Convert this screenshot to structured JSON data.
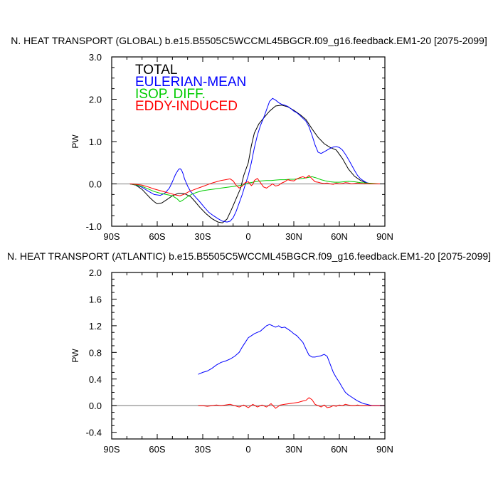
{
  "chart_data": [
    {
      "type": "line",
      "title": "N. HEAT TRANSPORT (GLOBAL) b.e15.B5505C5WCCML45BGCR.f09_g16.feedback.EM1-20 [2075-2099]",
      "xlabel": "",
      "ylabel": "PW",
      "xlim": [
        -90,
        90
      ],
      "ylim": [
        -1.0,
        3.0
      ],
      "xticks": [
        -90,
        -60,
        -30,
        0,
        30,
        60,
        90
      ],
      "xticklabels": [
        "90S",
        "60S",
        "30S",
        "0",
        "30N",
        "60N",
        "90N"
      ],
      "yticks": [
        -1.0,
        0.0,
        1.0,
        2.0,
        3.0
      ],
      "yticklabels": [
        "-1.0",
        "0.0",
        "1.0",
        "2.0",
        "3.0"
      ],
      "legend_position": "top-left",
      "zero_line_color": "#999999",
      "series": [
        {
          "name": "TOTAL",
          "color": "#000000",
          "x": [
            -78,
            -74,
            -70,
            -65,
            -62,
            -60,
            -57,
            -54,
            -50,
            -46,
            -42,
            -38,
            -35,
            -32,
            -28,
            -24,
            -20,
            -17,
            -14,
            -11,
            -8,
            -5,
            -3,
            0,
            2,
            4,
            7,
            10,
            14,
            18,
            22,
            26,
            30,
            34,
            38,
            42,
            46,
            50,
            54,
            58,
            62,
            66,
            70,
            74,
            78,
            82,
            86,
            90
          ],
          "y": [
            0,
            -0.03,
            -0.13,
            -0.32,
            -0.42,
            -0.47,
            -0.45,
            -0.38,
            -0.28,
            -0.22,
            -0.23,
            -0.3,
            -0.42,
            -0.55,
            -0.7,
            -0.82,
            -0.9,
            -0.92,
            -0.83,
            -0.6,
            -0.35,
            -0.1,
            0.2,
            0.5,
            0.9,
            1.2,
            1.42,
            1.55,
            1.72,
            1.84,
            1.86,
            1.82,
            1.74,
            1.64,
            1.52,
            1.3,
            1.1,
            0.95,
            0.86,
            0.8,
            0.6,
            0.35,
            0.18,
            0.08,
            0.02,
            0,
            0,
            0
          ]
        },
        {
          "name": "EULERIAN-MEAN",
          "color": "#0000ff",
          "x": [
            -78,
            -74,
            -70,
            -66,
            -62,
            -58,
            -55,
            -52,
            -50,
            -48,
            -46,
            -45,
            -44,
            -43,
            -42,
            -40,
            -38,
            -35,
            -32,
            -29,
            -26,
            -23,
            -20,
            -17,
            -14,
            -12,
            -10,
            -8,
            -6,
            -4,
            -2,
            0,
            2,
            4,
            6,
            8,
            10,
            12,
            14,
            16,
            18,
            20,
            22,
            24,
            26,
            28,
            30,
            32,
            34,
            36,
            38,
            40,
            42,
            44,
            46,
            48,
            50,
            52,
            54,
            56,
            58,
            60,
            62,
            64,
            66,
            68,
            70,
            72,
            74,
            76,
            78,
            80,
            82,
            84,
            86,
            88,
            90
          ],
          "y": [
            0,
            -0.02,
            -0.08,
            -0.17,
            -0.25,
            -0.27,
            -0.22,
            -0.1,
            0.05,
            0.22,
            0.34,
            0.36,
            0.33,
            0.24,
            0.12,
            -0.05,
            -0.18,
            -0.3,
            -0.42,
            -0.55,
            -0.67,
            -0.75,
            -0.82,
            -0.88,
            -0.9,
            -0.88,
            -0.8,
            -0.65,
            -0.45,
            -0.25,
            -0.02,
            0.2,
            0.5,
            0.85,
            1.15,
            1.38,
            1.55,
            1.75,
            1.95,
            2.02,
            1.98,
            1.92,
            1.88,
            1.86,
            1.83,
            1.78,
            1.72,
            1.68,
            1.62,
            1.55,
            1.48,
            1.35,
            1.15,
            0.92,
            0.75,
            0.72,
            0.76,
            0.8,
            0.84,
            0.87,
            0.88,
            0.86,
            0.8,
            0.7,
            0.58,
            0.45,
            0.32,
            0.2,
            0.12,
            0.07,
            0.03,
            0.01,
            0,
            0,
            0,
            0,
            0
          ]
        },
        {
          "name": "ISOP. DIFF.",
          "color": "#00cc00",
          "x": [
            -78,
            -74,
            -70,
            -66,
            -62,
            -58,
            -54,
            -50,
            -47,
            -45,
            -43,
            -40,
            -37,
            -34,
            -30,
            -26,
            -22,
            -18,
            -14,
            -10,
            -6,
            -3,
            0,
            3,
            6,
            9,
            12,
            15,
            18,
            21,
            24,
            27,
            30,
            33,
            36,
            39,
            42,
            45,
            48,
            51,
            54,
            57,
            60,
            63,
            66,
            70,
            74,
            78,
            82,
            86,
            90
          ],
          "y": [
            0,
            -0.02,
            -0.06,
            -0.12,
            -0.18,
            -0.22,
            -0.25,
            -0.28,
            -0.35,
            -0.42,
            -0.38,
            -0.3,
            -0.24,
            -0.2,
            -0.16,
            -0.14,
            -0.12,
            -0.1,
            -0.08,
            -0.06,
            -0.04,
            -0.02,
            0.02,
            0.04,
            0.06,
            0.07,
            0.08,
            0.08,
            0.09,
            0.1,
            0.1,
            0.11,
            0.11,
            0.12,
            0.13,
            0.15,
            0.17,
            0.14,
            0.1,
            0.07,
            0.05,
            0.04,
            0.04,
            0.05,
            0.06,
            0.05,
            0.03,
            0.02,
            0.01,
            0,
            0
          ]
        },
        {
          "name": "EDDY-INDUCED",
          "color": "#ff0000",
          "x": [
            -78,
            -74,
            -70,
            -66,
            -62,
            -58,
            -54,
            -51,
            -48,
            -45,
            -42,
            -39,
            -36,
            -33,
            -30,
            -27,
            -24,
            -21,
            -18,
            -15,
            -12,
            -10,
            -8,
            -6,
            -4,
            -2,
            0,
            1,
            2,
            3,
            4,
            6,
            8,
            10,
            12,
            14,
            16,
            18,
            20,
            22,
            24,
            26,
            28,
            30,
            32,
            34,
            36,
            38,
            40,
            42,
            44,
            46,
            48,
            50,
            52,
            54,
            56,
            58,
            60,
            62,
            64,
            66,
            68,
            70,
            72,
            74,
            76,
            78,
            80,
            82,
            84,
            86,
            88,
            90
          ],
          "y": [
            0,
            -0.01,
            -0.03,
            -0.07,
            -0.12,
            -0.16,
            -0.2,
            -0.23,
            -0.26,
            -0.28,
            -0.24,
            -0.18,
            -0.14,
            -0.1,
            -0.06,
            -0.02,
            0.02,
            0.05,
            0.08,
            0.1,
            0.12,
            0.07,
            -0.03,
            -0.1,
            -0.05,
            0.03,
            0.05,
            0.01,
            -0.04,
            -0.01,
            0.08,
            0.13,
            0.03,
            -0.07,
            -0.1,
            -0.05,
            0.0,
            -0.05,
            -0.03,
            0.02,
            0.05,
            0.1,
            0.08,
            0.07,
            0.12,
            0.15,
            0.17,
            0.14,
            0.2,
            0.12,
            0.05,
            0.04,
            0.02,
            0.01,
            0.02,
            0.0,
            -0.01,
            0.02,
            0.0,
            0.01,
            0.03,
            0.02,
            0.0,
            0.01,
            0.02,
            0.01,
            0.0,
            0.01,
            0.0,
            0.0,
            0.0,
            0.0,
            0.0,
            0.0
          ]
        }
      ]
    },
    {
      "type": "line",
      "title": "N. HEAT TRANSPORT (ATLANTIC) b.e15.B5505C5WCCML45BGCR.f09_g16.feedback.EM1-20 [2075-2099]",
      "xlabel": "",
      "ylabel": "PW",
      "xlim": [
        -90,
        90
      ],
      "ylim": [
        -0.5,
        2.0
      ],
      "xticks": [
        -90,
        -60,
        -30,
        0,
        30,
        60,
        90
      ],
      "xticklabels": [
        "90S",
        "60S",
        "30S",
        "0",
        "30N",
        "60N",
        "90N"
      ],
      "yticks": [
        -0.4,
        0.0,
        0.4,
        0.8,
        1.2,
        1.6,
        2.0
      ],
      "yticklabels": [
        "-0.4",
        "0.0",
        "0.4",
        "0.8",
        "1.2",
        "1.6",
        "2.0"
      ],
      "zero_line_color": "#999999",
      "series": [
        {
          "name": "EULERIAN-MEAN",
          "color": "#0000ff",
          "x": [
            -33,
            -30,
            -27,
            -24,
            -21,
            -18,
            -15,
            -12,
            -9,
            -6,
            -4,
            -2,
            0,
            2,
            4,
            6,
            8,
            10,
            12,
            14,
            16,
            18,
            20,
            22,
            24,
            26,
            28,
            30,
            32,
            34,
            36,
            38,
            40,
            42,
            44,
            46,
            48,
            50,
            52,
            54,
            56,
            58,
            60,
            62,
            64,
            66,
            68,
            70,
            72,
            74,
            76,
            78,
            80,
            82,
            84,
            86,
            88,
            90
          ],
          "y": [
            0.47,
            0.5,
            0.52,
            0.56,
            0.61,
            0.65,
            0.67,
            0.7,
            0.74,
            0.8,
            0.88,
            0.95,
            1.02,
            1.05,
            1.08,
            1.1,
            1.12,
            1.16,
            1.2,
            1.22,
            1.2,
            1.18,
            1.2,
            1.17,
            1.18,
            1.15,
            1.12,
            1.08,
            1.05,
            1.0,
            0.95,
            0.85,
            0.76,
            0.73,
            0.73,
            0.74,
            0.75,
            0.77,
            0.74,
            0.62,
            0.5,
            0.42,
            0.35,
            0.27,
            0.2,
            0.16,
            0.13,
            0.1,
            0.07,
            0.05,
            0.03,
            0.02,
            0.01,
            0,
            0,
            0,
            0,
            0
          ]
        },
        {
          "name": "EDDY-INDUCED",
          "color": "#ff0000",
          "x": [
            -33,
            -30,
            -27,
            -24,
            -21,
            -18,
            -15,
            -12,
            -9,
            -6,
            -3,
            0,
            3,
            6,
            9,
            12,
            15,
            18,
            21,
            24,
            27,
            30,
            33,
            36,
            38,
            40,
            42,
            44,
            46,
            48,
            50,
            52,
            54,
            56,
            58,
            60,
            62,
            64,
            66,
            68,
            70,
            72,
            74,
            76,
            78,
            80,
            82,
            84,
            86,
            88,
            90
          ],
          "y": [
            0,
            0,
            -0.01,
            0.0,
            0.01,
            0.0,
            0.01,
            0.02,
            0.0,
            -0.02,
            0.01,
            -0.03,
            0.02,
            -0.02,
            0.01,
            -0.02,
            0.03,
            -0.04,
            0.01,
            0.02,
            0.03,
            0.04,
            0.05,
            0.07,
            0.08,
            0.12,
            0.09,
            0.02,
            0.0,
            -0.02,
            0.01,
            -0.03,
            -0.02,
            0.0,
            -0.01,
            0.01,
            0.0,
            0.02,
            0.01,
            0.0,
            0.0,
            0.01,
            0.0,
            0.0,
            0.0,
            0.0,
            0.0,
            0.0,
            0.0,
            0.0,
            0.0
          ]
        }
      ]
    }
  ]
}
